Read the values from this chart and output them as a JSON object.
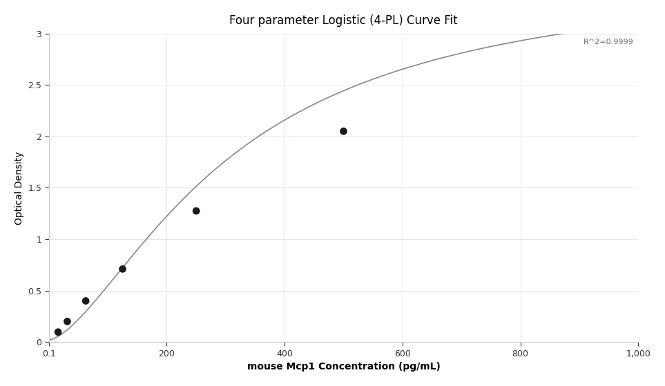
{
  "title": "Four parameter Logistic (4-PL) Curve Fit",
  "xlabel": "mouse Mcp1 Concentration (pg/mL)",
  "ylabel": "Optical Density",
  "r2_label": "R^2=0.9999",
  "data_points_x": [
    15.6,
    31.25,
    62.5,
    125,
    250,
    500
  ],
  "data_points_y": [
    0.097,
    0.2,
    0.4,
    0.71,
    1.275,
    2.05
  ],
  "xlim": [
    0,
    1000
  ],
  "ylim": [
    0,
    3.0
  ],
  "xticks": [
    0.1,
    200,
    400,
    600,
    800,
    1000
  ],
  "xtick_labels": [
    "0.1",
    "200",
    "400",
    "600",
    "800",
    "1,000"
  ],
  "yticks": [
    0,
    0.5,
    1.0,
    1.5,
    2.0,
    2.5,
    3.0
  ],
  "point_color": "#1a1a1a",
  "point_size": 60,
  "line_color": "#888888",
  "line_width": 1.2,
  "grid_color": "#dce8f0",
  "background_color": "#ffffff",
  "title_fontsize": 12,
  "label_fontsize": 10,
  "tick_fontsize": 9
}
